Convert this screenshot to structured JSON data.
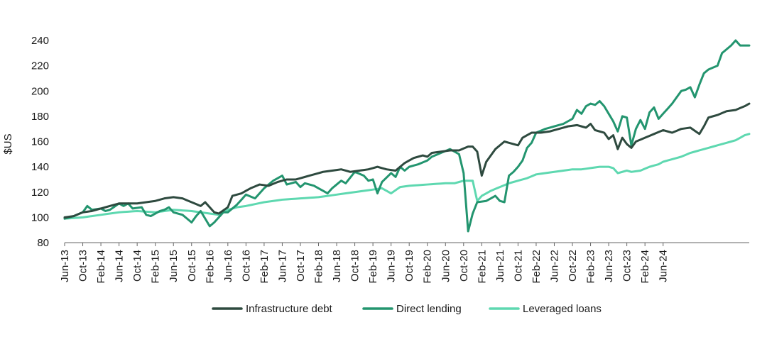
{
  "chart_data": {
    "type": "line",
    "ylabel": "$US",
    "xlabel": "",
    "ylim": [
      80,
      240
    ],
    "yticks": [
      "80",
      "100",
      "120",
      "140",
      "160",
      "180",
      "200",
      "220",
      "240"
    ],
    "grid": false,
    "legend_position": "bottom",
    "x_start": "Jun-13",
    "x_tick_labels": [
      "Jun-13",
      "Oct-13",
      "Feb-14",
      "Jun-14",
      "Oct-14",
      "Feb-15",
      "Jun-15",
      "Oct-15",
      "Feb-16",
      "Jun-16",
      "Oct-16",
      "Feb-17",
      "Jun-17",
      "Oct-17",
      "Feb-18",
      "Jun-18",
      "Oct-18",
      "Feb-19",
      "Jun-19",
      "Oct-19",
      "Feb-20",
      "Jun-20",
      "Oct-20",
      "Feb-21",
      "Jun-21",
      "Oct-21",
      "Feb-22",
      "Jun-22",
      "Oct-22",
      "Feb-23",
      "Jun-23",
      "Oct-23",
      "Feb-24",
      "Jun-24"
    ],
    "series": [
      {
        "name": "Infrastructure debt",
        "color": "#2e4a3f",
        "keyframes": [
          [
            0,
            100
          ],
          [
            2,
            101
          ],
          [
            4,
            104
          ],
          [
            6,
            105
          ],
          [
            8,
            107
          ],
          [
            10,
            109
          ],
          [
            12,
            111
          ],
          [
            14,
            111
          ],
          [
            16,
            111
          ],
          [
            18,
            112
          ],
          [
            20,
            113
          ],
          [
            22,
            115
          ],
          [
            24,
            116
          ],
          [
            26,
            115
          ],
          [
            28,
            112
          ],
          [
            30,
            109
          ],
          [
            31,
            112
          ],
          [
            33,
            104
          ],
          [
            34,
            103
          ],
          [
            36,
            108
          ],
          [
            37,
            117
          ],
          [
            39,
            119
          ],
          [
            41,
            123
          ],
          [
            43,
            126
          ],
          [
            45,
            125
          ],
          [
            47,
            128
          ],
          [
            49,
            130
          ],
          [
            51,
            130
          ],
          [
            53,
            132
          ],
          [
            55,
            134
          ],
          [
            57,
            136
          ],
          [
            59,
            137
          ],
          [
            61,
            138
          ],
          [
            63,
            136
          ],
          [
            65,
            137
          ],
          [
            67,
            138
          ],
          [
            69,
            140
          ],
          [
            71,
            138
          ],
          [
            73,
            137
          ],
          [
            75,
            143
          ],
          [
            77,
            147
          ],
          [
            79,
            149
          ],
          [
            80,
            148
          ],
          [
            81,
            151
          ],
          [
            83,
            152
          ],
          [
            85,
            153
          ],
          [
            87,
            153
          ],
          [
            89,
            156
          ],
          [
            90,
            156
          ],
          [
            91,
            152
          ],
          [
            92,
            133
          ],
          [
            93,
            144
          ],
          [
            95,
            154
          ],
          [
            97,
            160
          ],
          [
            99,
            158
          ],
          [
            100,
            157
          ],
          [
            101,
            163
          ],
          [
            103,
            167
          ],
          [
            105,
            167
          ],
          [
            107,
            168
          ],
          [
            109,
            170
          ],
          [
            111,
            172
          ],
          [
            113,
            173
          ],
          [
            115,
            171
          ],
          [
            116,
            174
          ],
          [
            117,
            169
          ],
          [
            119,
            167
          ],
          [
            120,
            162
          ],
          [
            121,
            165
          ],
          [
            122,
            154
          ],
          [
            123,
            163
          ],
          [
            124,
            158
          ],
          [
            125,
            155
          ],
          [
            126,
            160
          ],
          [
            128,
            163
          ],
          [
            130,
            166
          ],
          [
            132,
            169
          ],
          [
            134,
            167
          ],
          [
            136,
            170
          ],
          [
            138,
            171
          ],
          [
            140,
            166
          ],
          [
            141,
            172
          ],
          [
            142,
            179
          ],
          [
            144,
            181
          ],
          [
            146,
            184
          ],
          [
            148,
            185
          ],
          [
            150,
            188
          ],
          [
            151,
            190
          ]
        ]
      },
      {
        "name": "Direct lending",
        "color": "#23956f",
        "keyframes": [
          [
            0,
            99
          ],
          [
            2,
            101
          ],
          [
            4,
            104
          ],
          [
            5,
            109
          ],
          [
            6,
            106
          ],
          [
            8,
            107
          ],
          [
            9,
            105
          ],
          [
            10,
            106
          ],
          [
            12,
            111
          ],
          [
            13,
            109
          ],
          [
            14,
            111
          ],
          [
            15,
            107
          ],
          [
            17,
            108
          ],
          [
            18,
            102
          ],
          [
            19,
            101
          ],
          [
            21,
            105
          ],
          [
            22,
            106
          ],
          [
            23,
            108
          ],
          [
            24,
            104
          ],
          [
            26,
            102
          ],
          [
            28,
            96
          ],
          [
            29,
            101
          ],
          [
            30,
            105
          ],
          [
            32,
            93
          ],
          [
            33,
            96
          ],
          [
            35,
            104
          ],
          [
            36,
            104
          ],
          [
            38,
            110
          ],
          [
            40,
            118
          ],
          [
            42,
            115
          ],
          [
            44,
            123
          ],
          [
            46,
            129
          ],
          [
            48,
            133
          ],
          [
            49,
            126
          ],
          [
            51,
            128
          ],
          [
            52,
            124
          ],
          [
            53,
            127
          ],
          [
            55,
            125
          ],
          [
            57,
            121
          ],
          [
            58,
            119
          ],
          [
            59,
            123
          ],
          [
            61,
            129
          ],
          [
            62,
            127
          ],
          [
            64,
            136
          ],
          [
            66,
            133
          ],
          [
            67,
            129
          ],
          [
            68,
            130
          ],
          [
            69,
            119
          ],
          [
            70,
            128
          ],
          [
            72,
            135
          ],
          [
            73,
            132
          ],
          [
            74,
            140
          ],
          [
            75,
            137
          ],
          [
            76,
            140
          ],
          [
            78,
            142
          ],
          [
            80,
            145
          ],
          [
            81,
            148
          ],
          [
            83,
            151
          ],
          [
            85,
            154
          ],
          [
            87,
            150
          ],
          [
            88,
            135
          ],
          [
            89,
            89
          ],
          [
            90,
            103
          ],
          [
            91,
            112
          ],
          [
            93,
            113
          ],
          [
            95,
            117
          ],
          [
            96,
            113
          ],
          [
            97,
            112
          ],
          [
            98,
            133
          ],
          [
            99,
            136
          ],
          [
            100,
            140
          ],
          [
            101,
            145
          ],
          [
            102,
            155
          ],
          [
            103,
            159
          ],
          [
            104,
            167
          ],
          [
            106,
            170
          ],
          [
            108,
            172
          ],
          [
            110,
            174
          ],
          [
            112,
            178
          ],
          [
            113,
            185
          ],
          [
            114,
            182
          ],
          [
            115,
            188
          ],
          [
            116,
            190
          ],
          [
            117,
            189
          ],
          [
            118,
            192
          ],
          [
            119,
            188
          ],
          [
            120,
            182
          ],
          [
            121,
            176
          ],
          [
            122,
            168
          ],
          [
            123,
            180
          ],
          [
            124,
            179
          ],
          [
            125,
            157
          ],
          [
            126,
            170
          ],
          [
            127,
            177
          ],
          [
            128,
            170
          ],
          [
            129,
            183
          ],
          [
            130,
            187
          ],
          [
            131,
            178
          ],
          [
            132,
            182
          ],
          [
            134,
            190
          ],
          [
            136,
            200
          ],
          [
            137,
            201
          ],
          [
            138,
            203
          ],
          [
            139,
            195
          ],
          [
            140,
            205
          ],
          [
            141,
            214
          ],
          [
            142,
            217
          ],
          [
            144,
            220
          ],
          [
            145,
            230
          ],
          [
            146,
            233
          ],
          [
            147,
            236
          ],
          [
            148,
            240
          ],
          [
            149,
            236
          ],
          [
            151,
            236
          ]
        ]
      },
      {
        "name": "Leveraged loans",
        "color": "#5ed8b0",
        "keyframes": [
          [
            0,
            99
          ],
          [
            4,
            100
          ],
          [
            8,
            102
          ],
          [
            12,
            104
          ],
          [
            16,
            105
          ],
          [
            20,
            104
          ],
          [
            24,
            106
          ],
          [
            28,
            105
          ],
          [
            32,
            103
          ],
          [
            34,
            102
          ],
          [
            36,
            106
          ],
          [
            38,
            108
          ],
          [
            40,
            109
          ],
          [
            44,
            112
          ],
          [
            48,
            114
          ],
          [
            52,
            115
          ],
          [
            56,
            116
          ],
          [
            60,
            118
          ],
          [
            64,
            120
          ],
          [
            68,
            122
          ],
          [
            70,
            123
          ],
          [
            72,
            119
          ],
          [
            74,
            124
          ],
          [
            76,
            125
          ],
          [
            80,
            126
          ],
          [
            84,
            127
          ],
          [
            86,
            127
          ],
          [
            88,
            129
          ],
          [
            90,
            129
          ],
          [
            91,
            113
          ],
          [
            92,
            117
          ],
          [
            94,
            121
          ],
          [
            96,
            124
          ],
          [
            98,
            127
          ],
          [
            100,
            129
          ],
          [
            102,
            131
          ],
          [
            104,
            134
          ],
          [
            106,
            135
          ],
          [
            108,
            136
          ],
          [
            110,
            137
          ],
          [
            112,
            138
          ],
          [
            114,
            138
          ],
          [
            116,
            139
          ],
          [
            118,
            140
          ],
          [
            120,
            140
          ],
          [
            121,
            139
          ],
          [
            122,
            135
          ],
          [
            124,
            137
          ],
          [
            125,
            136
          ],
          [
            127,
            137
          ],
          [
            129,
            140
          ],
          [
            131,
            142
          ],
          [
            132,
            144
          ],
          [
            134,
            146
          ],
          [
            136,
            148
          ],
          [
            138,
            151
          ],
          [
            140,
            153
          ],
          [
            142,
            155
          ],
          [
            144,
            157
          ],
          [
            146,
            159
          ],
          [
            148,
            161
          ],
          [
            150,
            165
          ],
          [
            151,
            166
          ]
        ]
      }
    ]
  }
}
